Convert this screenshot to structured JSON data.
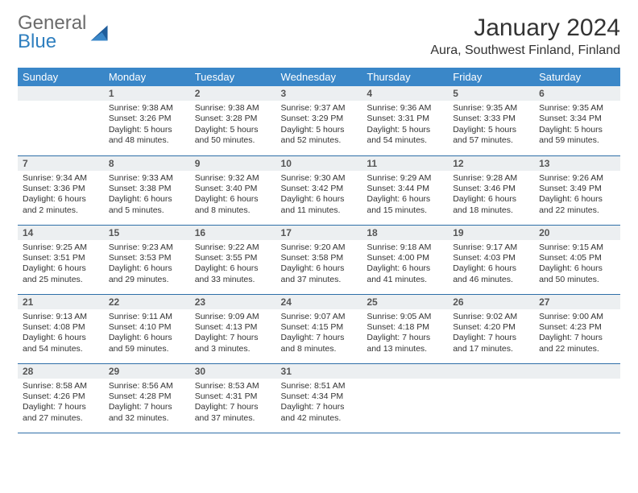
{
  "logo": {
    "word1": "General",
    "word2": "Blue"
  },
  "title": "January 2024",
  "location": "Aura, Southwest Finland, Finland",
  "colors": {
    "header_bg": "#3a87c8",
    "header_fg": "#ffffff",
    "daynum_bg": "#eceff1",
    "row_border": "#2f6fa8",
    "logo_blue": "#2f7fbf",
    "logo_gray": "#6b6b6b"
  },
  "weekdays": [
    "Sunday",
    "Monday",
    "Tuesday",
    "Wednesday",
    "Thursday",
    "Friday",
    "Saturday"
  ],
  "weeks": [
    [
      null,
      {
        "n": "1",
        "sr": "9:38 AM",
        "ss": "3:26 PM",
        "dl": "5 hours and 48 minutes."
      },
      {
        "n": "2",
        "sr": "9:38 AM",
        "ss": "3:28 PM",
        "dl": "5 hours and 50 minutes."
      },
      {
        "n": "3",
        "sr": "9:37 AM",
        "ss": "3:29 PM",
        "dl": "5 hours and 52 minutes."
      },
      {
        "n": "4",
        "sr": "9:36 AM",
        "ss": "3:31 PM",
        "dl": "5 hours and 54 minutes."
      },
      {
        "n": "5",
        "sr": "9:35 AM",
        "ss": "3:33 PM",
        "dl": "5 hours and 57 minutes."
      },
      {
        "n": "6",
        "sr": "9:35 AM",
        "ss": "3:34 PM",
        "dl": "5 hours and 59 minutes."
      }
    ],
    [
      {
        "n": "7",
        "sr": "9:34 AM",
        "ss": "3:36 PM",
        "dl": "6 hours and 2 minutes."
      },
      {
        "n": "8",
        "sr": "9:33 AM",
        "ss": "3:38 PM",
        "dl": "6 hours and 5 minutes."
      },
      {
        "n": "9",
        "sr": "9:32 AM",
        "ss": "3:40 PM",
        "dl": "6 hours and 8 minutes."
      },
      {
        "n": "10",
        "sr": "9:30 AM",
        "ss": "3:42 PM",
        "dl": "6 hours and 11 minutes."
      },
      {
        "n": "11",
        "sr": "9:29 AM",
        "ss": "3:44 PM",
        "dl": "6 hours and 15 minutes."
      },
      {
        "n": "12",
        "sr": "9:28 AM",
        "ss": "3:46 PM",
        "dl": "6 hours and 18 minutes."
      },
      {
        "n": "13",
        "sr": "9:26 AM",
        "ss": "3:49 PM",
        "dl": "6 hours and 22 minutes."
      }
    ],
    [
      {
        "n": "14",
        "sr": "9:25 AM",
        "ss": "3:51 PM",
        "dl": "6 hours and 25 minutes."
      },
      {
        "n": "15",
        "sr": "9:23 AM",
        "ss": "3:53 PM",
        "dl": "6 hours and 29 minutes."
      },
      {
        "n": "16",
        "sr": "9:22 AM",
        "ss": "3:55 PM",
        "dl": "6 hours and 33 minutes."
      },
      {
        "n": "17",
        "sr": "9:20 AM",
        "ss": "3:58 PM",
        "dl": "6 hours and 37 minutes."
      },
      {
        "n": "18",
        "sr": "9:18 AM",
        "ss": "4:00 PM",
        "dl": "6 hours and 41 minutes."
      },
      {
        "n": "19",
        "sr": "9:17 AM",
        "ss": "4:03 PM",
        "dl": "6 hours and 46 minutes."
      },
      {
        "n": "20",
        "sr": "9:15 AM",
        "ss": "4:05 PM",
        "dl": "6 hours and 50 minutes."
      }
    ],
    [
      {
        "n": "21",
        "sr": "9:13 AM",
        "ss": "4:08 PM",
        "dl": "6 hours and 54 minutes."
      },
      {
        "n": "22",
        "sr": "9:11 AM",
        "ss": "4:10 PM",
        "dl": "6 hours and 59 minutes."
      },
      {
        "n": "23",
        "sr": "9:09 AM",
        "ss": "4:13 PM",
        "dl": "7 hours and 3 minutes."
      },
      {
        "n": "24",
        "sr": "9:07 AM",
        "ss": "4:15 PM",
        "dl": "7 hours and 8 minutes."
      },
      {
        "n": "25",
        "sr": "9:05 AM",
        "ss": "4:18 PM",
        "dl": "7 hours and 13 minutes."
      },
      {
        "n": "26",
        "sr": "9:02 AM",
        "ss": "4:20 PM",
        "dl": "7 hours and 17 minutes."
      },
      {
        "n": "27",
        "sr": "9:00 AM",
        "ss": "4:23 PM",
        "dl": "7 hours and 22 minutes."
      }
    ],
    [
      {
        "n": "28",
        "sr": "8:58 AM",
        "ss": "4:26 PM",
        "dl": "7 hours and 27 minutes."
      },
      {
        "n": "29",
        "sr": "8:56 AM",
        "ss": "4:28 PM",
        "dl": "7 hours and 32 minutes."
      },
      {
        "n": "30",
        "sr": "8:53 AM",
        "ss": "4:31 PM",
        "dl": "7 hours and 37 minutes."
      },
      {
        "n": "31",
        "sr": "8:51 AM",
        "ss": "4:34 PM",
        "dl": "7 hours and 42 minutes."
      },
      null,
      null,
      null
    ]
  ],
  "labels": {
    "sunrise": "Sunrise:",
    "sunset": "Sunset:",
    "daylight": "Daylight:"
  }
}
